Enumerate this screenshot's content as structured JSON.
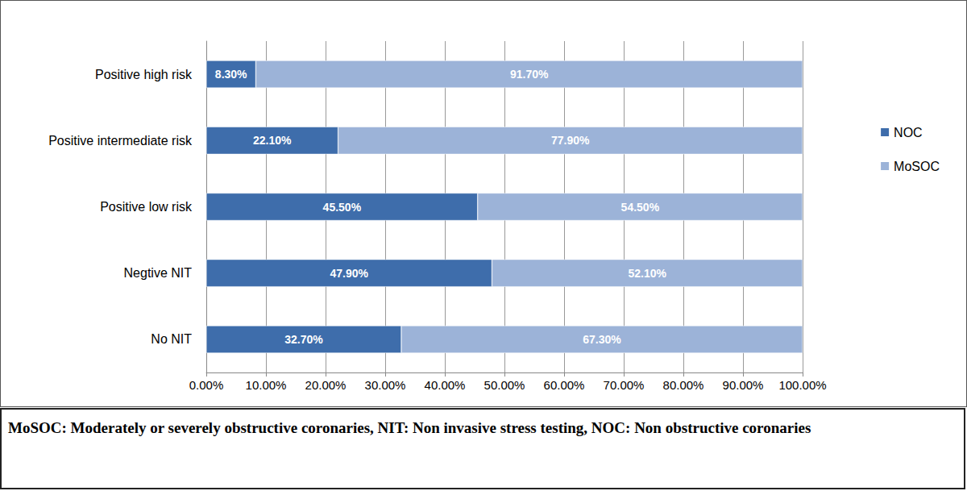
{
  "chart_data": {
    "type": "bar",
    "orientation": "horizontal",
    "stacked": true,
    "data_labels": true,
    "legend": "right",
    "grid": true,
    "categories": [
      "No NIT",
      "Negtive NIT",
      "Positive low risk",
      "Positive intermediate risk",
      "Positive high risk"
    ],
    "series": [
      {
        "name": "NOC",
        "color": "#3e6dab",
        "values": [
          32.7,
          47.9,
          45.5,
          22.1,
          8.3
        ],
        "value_labels": [
          "32.70%",
          "47.90%",
          "45.50%",
          "22.10%",
          "8.30%"
        ]
      },
      {
        "name": "MoSOC",
        "color": "#9cb3d8",
        "values": [
          67.3,
          52.1,
          54.5,
          77.9,
          91.7
        ],
        "value_labels": [
          "67.30%",
          "52.10%",
          "54.50%",
          "77.90%",
          "91.70%"
        ]
      }
    ],
    "xlim": [
      0,
      100
    ],
    "xticks": [
      {
        "value": 0,
        "label": "0.00%"
      },
      {
        "value": 10,
        "label": "10.00%"
      },
      {
        "value": 20,
        "label": "20.00%"
      },
      {
        "value": 30,
        "label": "30.00%"
      },
      {
        "value": 40,
        "label": "40.00%"
      },
      {
        "value": 50,
        "label": "50.00%"
      },
      {
        "value": 60,
        "label": "60.00%"
      },
      {
        "value": 70,
        "label": "70.00%"
      },
      {
        "value": 80,
        "label": "80.00%"
      },
      {
        "value": 90,
        "label": "90.00%"
      },
      {
        "value": 100,
        "label": "100.00%"
      }
    ],
    "annotations": [
      "MoSOC: Moderately or severely obstructive coronaries, NIT: Non invasive stress testing, NOC: Non obstructive coronaries"
    ]
  }
}
